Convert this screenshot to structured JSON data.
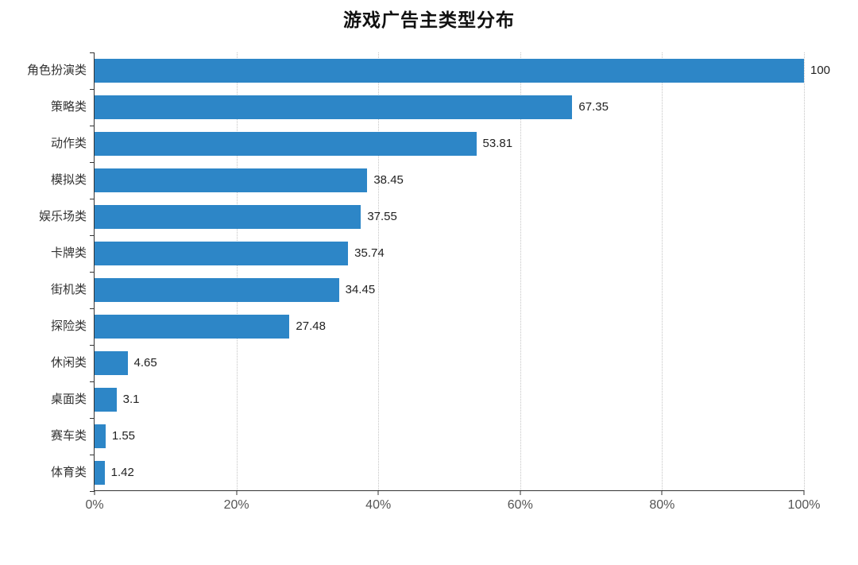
{
  "page": {
    "background": "#ffffff"
  },
  "chart_data": {
    "type": "bar",
    "orientation": "horizontal",
    "title": "游戏广告主类型分布",
    "categories": [
      "角色扮演类",
      "策略类",
      "动作类",
      "模拟类",
      "娱乐场类",
      "卡牌类",
      "街机类",
      "探险类",
      "休闲类",
      "桌面类",
      "赛车类",
      "体育类"
    ],
    "values": [
      100,
      67.35,
      53.81,
      38.45,
      37.55,
      35.74,
      34.45,
      27.48,
      4.65,
      3.1,
      1.55,
      1.42
    ],
    "value_labels": [
      "100",
      "67.35",
      "53.81",
      "38.45",
      "37.55",
      "35.74",
      "34.45",
      "27.48",
      "4.65",
      "3.1",
      "1.55",
      "1.42"
    ],
    "x_tick_labels": [
      "0%",
      "20%",
      "40%",
      "60%",
      "80%",
      "100%"
    ],
    "x_tick_values": [
      0,
      20,
      40,
      60,
      80,
      100
    ],
    "xlim": [
      0,
      100
    ],
    "xlabel": "",
    "ylabel": "",
    "legend": "none",
    "grid": "vertical-dotted",
    "colors": {
      "bar": "#2d86c7",
      "axis": "#333333",
      "grid": "#c4c4c4",
      "title_text": "#111111",
      "category_text": "#333333",
      "value_text": "#222222",
      "tick_text": "#555555"
    }
  }
}
